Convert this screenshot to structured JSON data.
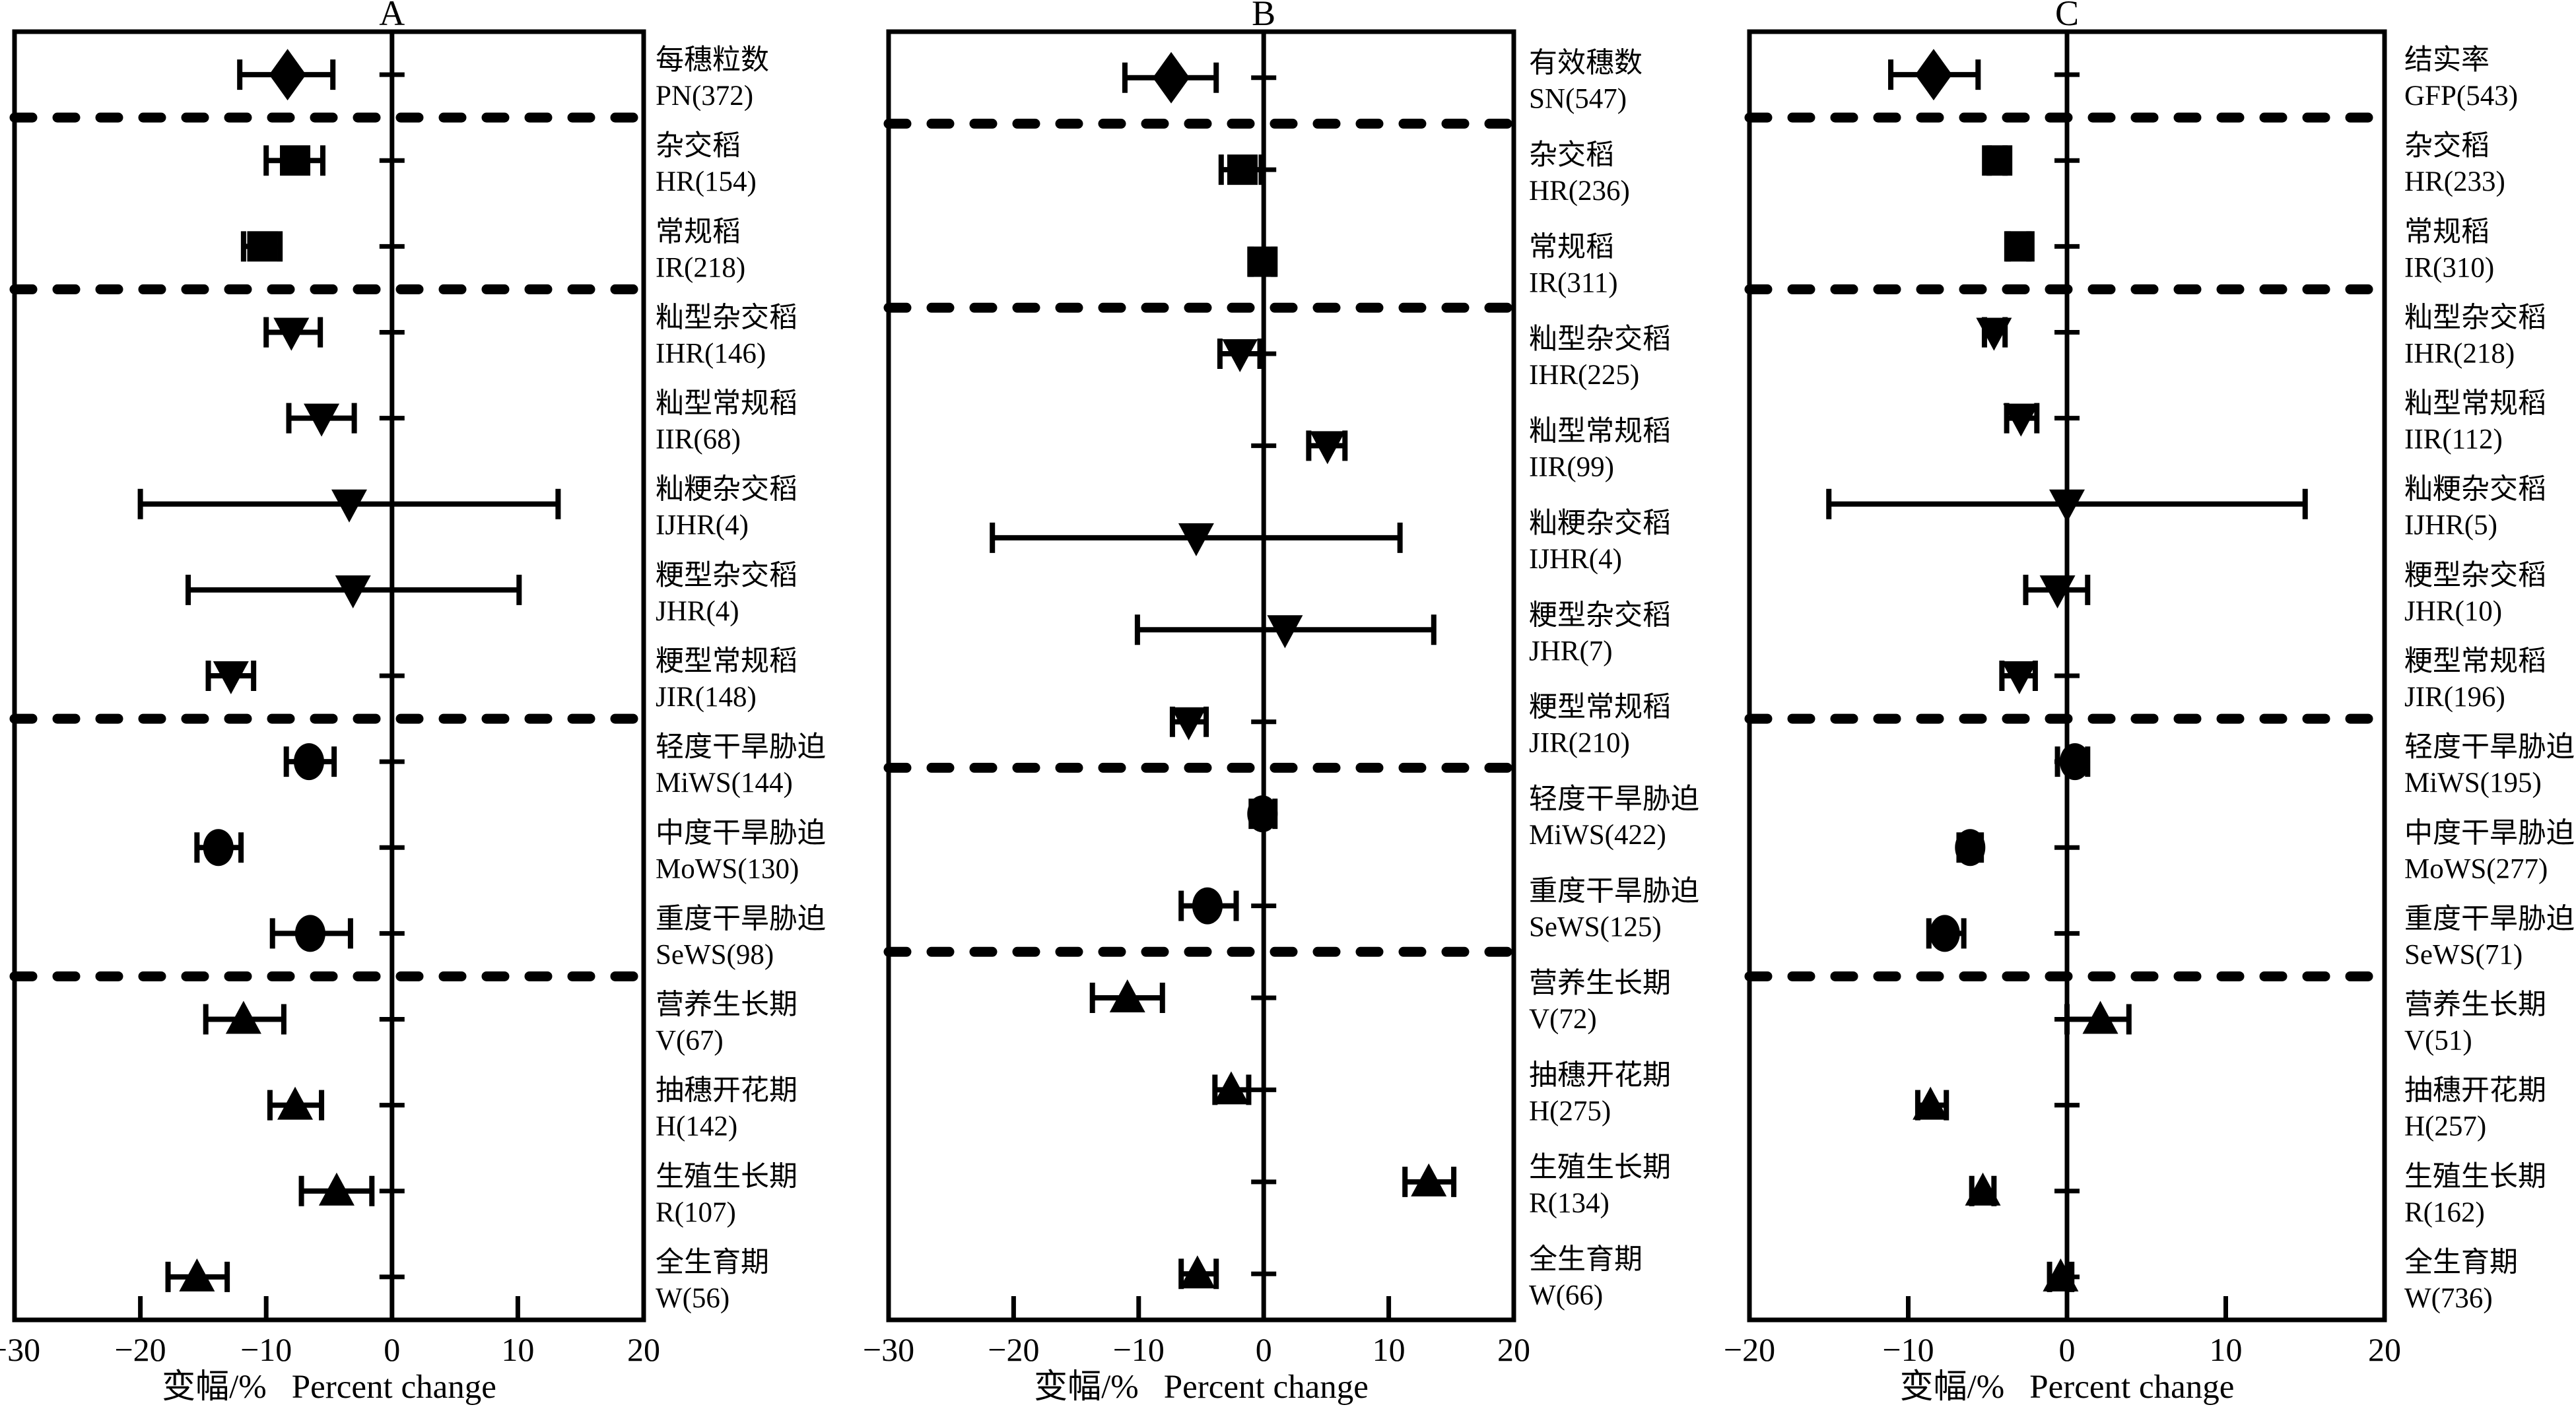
{
  "figure": {
    "background_color": "#ffffff",
    "ink_color": "#000000",
    "xaxis_label_zh": "变幅/%",
    "xaxis_label_en": "Percent change"
  },
  "chart_data": [
    {
      "type": "scatter",
      "subtype": "forest-plot",
      "panel": "A",
      "xlabel_zh": "变幅/%",
      "xlabel_en": "Percent change",
      "xlim": [
        -30,
        20
      ],
      "xticks": [
        -30,
        -20,
        -10,
        0,
        10,
        20
      ],
      "grid": false,
      "separators_after": [
        0,
        2,
        7,
        10
      ],
      "rows": [
        {
          "label_zh": "每穗粒数",
          "code": "PN(372)",
          "marker": "diamond",
          "mean": -8.3,
          "lo": -12.1,
          "hi": -4.7
        },
        {
          "label_zh": "杂交稻",
          "code": "HR(154)",
          "marker": "square",
          "mean": -7.7,
          "lo": -10.0,
          "hi": -5.5
        },
        {
          "label_zh": "常规稻",
          "code": "IR(218)",
          "marker": "square",
          "mean": -10.3,
          "lo": -11.8,
          "hi": -8.9
        },
        {
          "label_zh": "籼型杂交稻",
          "code": "IHR(146)",
          "marker": "tri-down",
          "mean": -8.0,
          "lo": -10.0,
          "hi": -5.7
        },
        {
          "label_zh": "籼型常规稻",
          "code": "IIR(68)",
          "marker": "tri-down",
          "mean": -5.6,
          "lo": -8.2,
          "hi": -3.0
        },
        {
          "label_zh": "籼粳杂交稻",
          "code": "IJHR(4)",
          "marker": "tri-down",
          "mean": -3.4,
          "lo": -20.0,
          "hi": 13.2
        },
        {
          "label_zh": "粳型杂交稻",
          "code": "JHR(4)",
          "marker": "tri-down",
          "mean": -3.1,
          "lo": -16.2,
          "hi": 10.1
        },
        {
          "label_zh": "粳型常规稻",
          "code": "JIR(148)",
          "marker": "tri-down",
          "mean": -12.8,
          "lo": -14.6,
          "hi": -11.0
        },
        {
          "label_zh": "轻度干旱胁迫",
          "code": "MiWS(144)",
          "marker": "circle",
          "mean": -6.6,
          "lo": -8.4,
          "hi": -4.6
        },
        {
          "label_zh": "中度干旱胁迫",
          "code": "MoWS(130)",
          "marker": "circle",
          "mean": -13.8,
          "lo": -15.5,
          "hi": -12.0
        },
        {
          "label_zh": "重度干旱胁迫",
          "code": "SeWS(98)",
          "marker": "circle",
          "mean": -6.5,
          "lo": -9.5,
          "hi": -3.3
        },
        {
          "label_zh": "营养生长期",
          "code": "V(67)",
          "marker": "tri-up",
          "mean": -11.8,
          "lo": -14.8,
          "hi": -8.6
        },
        {
          "label_zh": "抽穗开花期",
          "code": "H(142)",
          "marker": "tri-up",
          "mean": -7.7,
          "lo": -9.7,
          "hi": -5.6
        },
        {
          "label_zh": "生殖生长期",
          "code": "R(107)",
          "marker": "tri-up",
          "mean": -4.4,
          "lo": -7.2,
          "hi": -1.6
        },
        {
          "label_zh": "全生育期",
          "code": "W(56)",
          "marker": "tri-up",
          "mean": -15.5,
          "lo": -17.8,
          "hi": -13.1
        }
      ]
    },
    {
      "type": "scatter",
      "subtype": "forest-plot",
      "panel": "B",
      "xlabel_zh": "变幅/%",
      "xlabel_en": "Percent change",
      "xlim": [
        -30,
        20
      ],
      "xticks": [
        -30,
        -20,
        -10,
        0,
        10,
        20
      ],
      "grid": false,
      "separators_after": [
        0,
        2,
        7,
        9
      ],
      "rows": [
        {
          "label_zh": "有效穗数",
          "code": "SN(547)",
          "marker": "diamond",
          "mean": -7.4,
          "lo": -11.1,
          "hi": -3.8
        },
        {
          "label_zh": "杂交稻",
          "code": "HR(236)",
          "marker": "square",
          "mean": -1.7,
          "lo": -3.4,
          "hi": -0.2
        },
        {
          "label_zh": "常规稻",
          "code": "IR(311)",
          "marker": "square",
          "mean": -0.1,
          "lo": -1.0,
          "hi": 0.8
        },
        {
          "label_zh": "籼型杂交稻",
          "code": "IHR(225)",
          "marker": "tri-down",
          "mean": -1.9,
          "lo": -3.5,
          "hi": -0.3
        },
        {
          "label_zh": "籼型常规稻",
          "code": "IIR(99)",
          "marker": "tri-down",
          "mean": 5.1,
          "lo": 3.6,
          "hi": 6.5
        },
        {
          "label_zh": "籼粳杂交稻",
          "code": "IJHR(4)",
          "marker": "tri-down",
          "mean": -5.4,
          "lo": -21.7,
          "hi": 10.9
        },
        {
          "label_zh": "粳型杂交稻",
          "code": "JHR(7)",
          "marker": "tri-down",
          "mean": 1.7,
          "lo": -10.1,
          "hi": 13.6
        },
        {
          "label_zh": "粳型常规稻",
          "code": "JIR(210)",
          "marker": "tri-down",
          "mean": -6.0,
          "lo": -7.3,
          "hi": -4.6
        },
        {
          "label_zh": "轻度干旱胁迫",
          "code": "MiWS(422)",
          "marker": "circle",
          "mean": -0.1,
          "lo": -1.0,
          "hi": 0.9
        },
        {
          "label_zh": "重度干旱胁迫",
          "code": "SeWS(125)",
          "marker": "circle",
          "mean": -4.5,
          "lo": -6.6,
          "hi": -2.2
        },
        {
          "label_zh": "营养生长期",
          "code": "V(72)",
          "marker": "tri-up",
          "mean": -10.9,
          "lo": -13.7,
          "hi": -8.1
        },
        {
          "label_zh": "抽穗开花期",
          "code": "H(275)",
          "marker": "tri-up",
          "mean": -2.6,
          "lo": -3.9,
          "hi": -1.2
        },
        {
          "label_zh": "生殖生长期",
          "code": "R(134)",
          "marker": "tri-up",
          "mean": 13.2,
          "lo": 11.3,
          "hi": 15.2
        },
        {
          "label_zh": "全生育期",
          "code": "W(66)",
          "marker": "tri-up",
          "mean": -5.3,
          "lo": -6.6,
          "hi": -3.8
        }
      ]
    },
    {
      "type": "scatter",
      "subtype": "forest-plot",
      "panel": "C",
      "xlabel_zh": "变幅/%",
      "xlabel_en": "Percent change",
      "xlim": [
        -20,
        20
      ],
      "xticks": [
        -20,
        -10,
        0,
        10,
        20
      ],
      "grid": false,
      "separators_after": [
        0,
        2,
        7,
        10
      ],
      "rows": [
        {
          "label_zh": "结实率",
          "code": "GFP(543)",
          "marker": "diamond",
          "mean": -8.4,
          "lo": -11.1,
          "hi": -5.6
        },
        {
          "label_zh": "杂交稻",
          "code": "HR(233)",
          "marker": "square",
          "mean": -4.4,
          "lo": -4.9,
          "hi": -3.9
        },
        {
          "label_zh": "常规稻",
          "code": "IR(310)",
          "marker": "square",
          "mean": -3.0,
          "lo": -3.7,
          "hi": -2.4
        },
        {
          "label_zh": "籼型杂交稻",
          "code": "IHR(218)",
          "marker": "tri-down",
          "mean": -4.6,
          "lo": -5.2,
          "hi": -3.9
        },
        {
          "label_zh": "籼型常规稻",
          "code": "IIR(112)",
          "marker": "tri-down",
          "mean": -2.9,
          "lo": -3.8,
          "hi": -1.9
        },
        {
          "label_zh": "籼粳杂交稻",
          "code": "IJHR(5)",
          "marker": "tri-down",
          "mean": 0.0,
          "lo": -15.0,
          "hi": 15.0
        },
        {
          "label_zh": "粳型杂交稻",
          "code": "JHR(10)",
          "marker": "tri-down",
          "mean": -0.6,
          "lo": -2.6,
          "hi": 1.3
        },
        {
          "label_zh": "粳型常规稻",
          "code": "JIR(196)",
          "marker": "tri-down",
          "mean": -3.0,
          "lo": -4.1,
          "hi": -2.0
        },
        {
          "label_zh": "轻度干旱胁迫",
          "code": "MiWS(195)",
          "marker": "circle",
          "mean": 0.5,
          "lo": -0.6,
          "hi": 1.3
        },
        {
          "label_zh": "中度干旱胁迫",
          "code": "MoWS(277)",
          "marker": "circle",
          "mean": -6.1,
          "lo": -6.8,
          "hi": -5.4
        },
        {
          "label_zh": "重度干旱胁迫",
          "code": "SeWS(71)",
          "marker": "circle",
          "mean": -7.7,
          "lo": -8.7,
          "hi": -6.5
        },
        {
          "label_zh": "营养生长期",
          "code": "V(51)",
          "marker": "tri-up",
          "mean": 2.1,
          "lo": 0.0,
          "hi": 3.9
        },
        {
          "label_zh": "抽穗开花期",
          "code": "H(257)",
          "marker": "tri-up",
          "mean": -8.6,
          "lo": -9.4,
          "hi": -7.6
        },
        {
          "label_zh": "生殖生长期",
          "code": "R(162)",
          "marker": "tri-up",
          "mean": -5.3,
          "lo": -6.0,
          "hi": -4.6
        },
        {
          "label_zh": "全生育期",
          "code": "W(736)",
          "marker": "tri-up",
          "mean": -0.4,
          "lo": -1.1,
          "hi": 0.3
        }
      ]
    }
  ]
}
